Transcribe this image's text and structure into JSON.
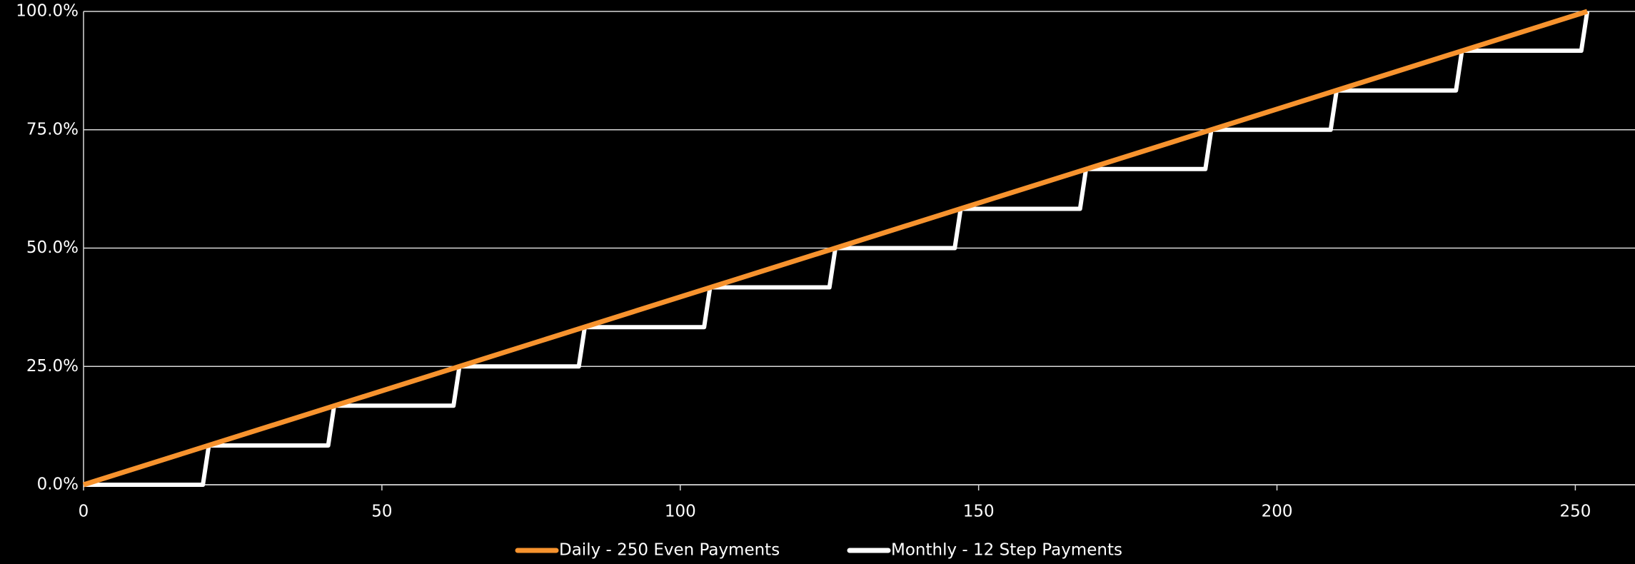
{
  "chart_data": {
    "type": "line",
    "xlim": [
      0,
      260
    ],
    "xticks": [
      0,
      50,
      100,
      150,
      200,
      250
    ],
    "ylim": [
      0,
      100
    ],
    "yticks": [
      {
        "value": 0,
        "label": "0.0%"
      },
      {
        "value": 25,
        "label": "25.0%"
      },
      {
        "value": 50,
        "label": "50.0%"
      },
      {
        "value": 75,
        "label": "75.0%"
      },
      {
        "value": 100,
        "label": "100.0%"
      }
    ],
    "grid": true,
    "legend": "bottom",
    "series": [
      {
        "name": "Daily - 250 Even Payments",
        "color": "#f7932e",
        "x": [
          0,
          252
        ],
        "values": [
          0,
          100
        ]
      },
      {
        "name": "Monthly - 12 Step Payments",
        "color": "#ffffff",
        "x": [
          0,
          20,
          21,
          41,
          42,
          62,
          63,
          83,
          84,
          104,
          105,
          125,
          126,
          146,
          147,
          167,
          168,
          188,
          189,
          209,
          210,
          230,
          231,
          251,
          252
        ],
        "values": [
          0,
          0,
          8.3,
          8.3,
          16.7,
          16.7,
          25,
          25,
          33.3,
          33.3,
          41.7,
          41.7,
          50,
          50,
          58.3,
          58.3,
          66.7,
          66.7,
          75,
          75,
          83.3,
          83.3,
          91.7,
          91.7,
          100
        ]
      }
    ]
  }
}
